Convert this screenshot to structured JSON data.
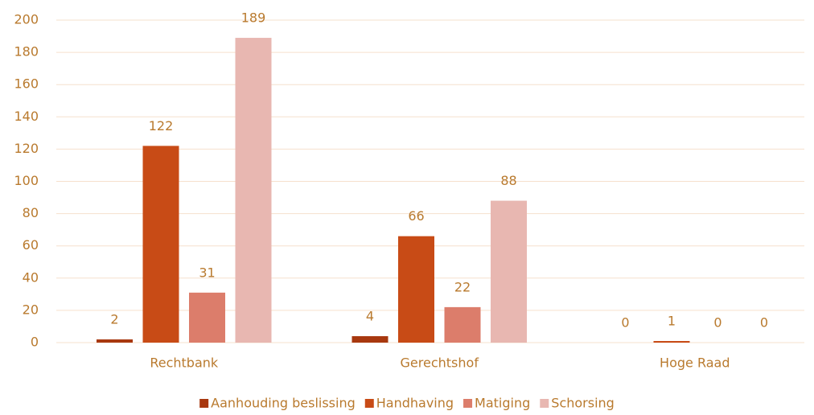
{
  "chart_data": {
    "type": "bar",
    "categories": [
      "Rechtbank",
      "Gerechtshof",
      "Hoge Raad"
    ],
    "series": [
      {
        "name": "Aanhouding beslissing",
        "color": "#a8380f",
        "values": [
          2,
          4,
          0
        ]
      },
      {
        "name": "Handhaving",
        "color": "#c84b16",
        "values": [
          122,
          66,
          1
        ]
      },
      {
        "name": "Matiging",
        "color": "#dc7d6b",
        "values": [
          31,
          22,
          0
        ]
      },
      {
        "name": "Schorsing",
        "color": "#e8b7b1",
        "values": [
          189,
          88,
          0
        ]
      }
    ],
    "ylim": [
      0,
      200
    ],
    "yticks": [
      0,
      20,
      40,
      60,
      80,
      100,
      120,
      140,
      160,
      180,
      200
    ],
    "grid": true,
    "legend": "bottom"
  }
}
